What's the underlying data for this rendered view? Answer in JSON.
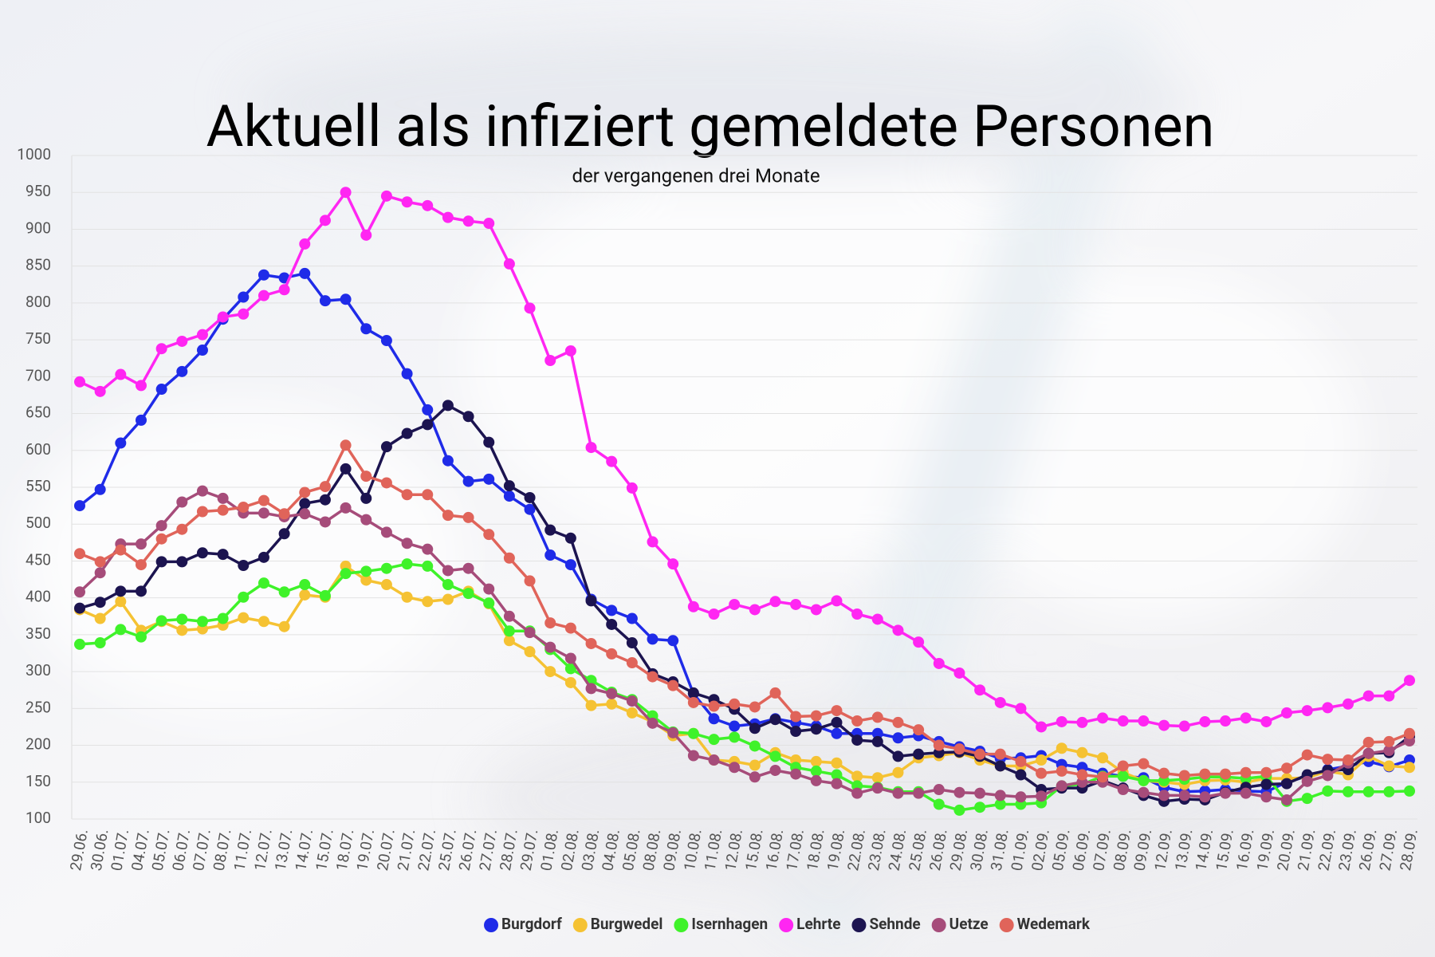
{
  "chart_data": {
    "type": "line",
    "title": "Aktuell als infiziert gemeldete Personen",
    "subtitle": "der vergangenen drei Monate",
    "categories": [
      "29.06.",
      "30.06.",
      "01.07.",
      "04.07.",
      "05.07.",
      "06.07.",
      "07.07.",
      "08.07.",
      "11.07.",
      "12.07.",
      "13.07.",
      "14.07.",
      "15.07.",
      "18.07.",
      "19.07.",
      "20.07.",
      "21.07.",
      "22.07.",
      "25.07.",
      "26.07.",
      "27.07.",
      "28.07.",
      "29.07.",
      "01.08.",
      "02.08.",
      "03.08.",
      "04.08.",
      "05.08.",
      "08.08.",
      "09.08.",
      "10.08.",
      "11.08.",
      "12.08.",
      "15.08.",
      "16.08.",
      "17.08.",
      "18.08.",
      "19.08.",
      "22.08.",
      "23.08.",
      "24.08.",
      "25.08.",
      "26.08.",
      "29.08.",
      "30.08.",
      "31.08.",
      "01.09.",
      "02.09.",
      "05.09.",
      "06.09.",
      "07.09.",
      "08.09.",
      "09.09.",
      "12.09.",
      "13.09.",
      "14.09.",
      "15.09.",
      "16.09.",
      "19.09.",
      "20.09.",
      "21.09.",
      "22.09.",
      "23.09.",
      "26.09.",
      "27.09.",
      "28.09."
    ],
    "series": [
      {
        "name": "Burgdorf",
        "color": "#1f2be8",
        "values": [
          525,
          547,
          610,
          641,
          683,
          707,
          736,
          778,
          808,
          838,
          834,
          840,
          803,
          805,
          765,
          749,
          704,
          655,
          586,
          558,
          561,
          538,
          520,
          458,
          445,
          398,
          383,
          372,
          344,
          342,
          270,
          236,
          226,
          229,
          236,
          231,
          226,
          216,
          216,
          216,
          210,
          213,
          205,
          198,
          192,
          182,
          183,
          186,
          174,
          170,
          162,
          158,
          156,
          143,
          137,
          138,
          140,
          138,
          137,
          150,
          158,
          167,
          172,
          178,
          171,
          180
        ]
      },
      {
        "name": "Burgwedel",
        "color": "#f5c233",
        "values": [
          384,
          372,
          395,
          356,
          368,
          356,
          358,
          363,
          373,
          368,
          361,
          404,
          401,
          443,
          424,
          418,
          401,
          395,
          398,
          409,
          392,
          342,
          327,
          300,
          285,
          254,
          256,
          244,
          232,
          213,
          216,
          180,
          178,
          173,
          190,
          180,
          178,
          176,
          158,
          156,
          163,
          183,
          186,
          190,
          180,
          172,
          172,
          180,
          196,
          190,
          183,
          163,
          152,
          150,
          147,
          152,
          153,
          150,
          155,
          155,
          156,
          165,
          160,
          185,
          172,
          170
        ]
      },
      {
        "name": "Isernhagen",
        "color": "#3ff22a",
        "values": [
          337,
          339,
          357,
          347,
          369,
          371,
          368,
          372,
          401,
          420,
          408,
          418,
          403,
          433,
          436,
          440,
          446,
          443,
          418,
          406,
          393,
          355,
          355,
          330,
          304,
          288,
          272,
          262,
          240,
          218,
          216,
          208,
          211,
          199,
          185,
          170,
          165,
          160,
          145,
          143,
          137,
          137,
          120,
          112,
          116,
          120,
          120,
          122,
          145,
          147,
          158,
          158,
          152,
          152,
          154,
          157,
          157,
          155,
          158,
          124,
          128,
          138,
          137,
          137,
          137,
          138
        ]
      },
      {
        "name": "Lehrte",
        "color": "#ff26f2",
        "values": [
          693,
          680,
          703,
          688,
          738,
          748,
          757,
          781,
          785,
          810,
          818,
          880,
          912,
          950,
          892,
          945,
          937,
          932,
          916,
          911,
          908,
          853,
          793,
          722,
          735,
          604,
          585,
          549,
          476,
          446,
          388,
          378,
          391,
          384,
          395,
          391,
          384,
          396,
          378,
          371,
          356,
          340,
          311,
          298,
          275,
          258,
          250,
          225,
          232,
          231,
          237,
          233,
          233,
          227,
          226,
          232,
          233,
          237,
          232,
          244,
          247,
          251,
          256,
          267,
          267,
          288
        ]
      },
      {
        "name": "Sehnde",
        "color": "#1c1450",
        "values": [
          386,
          394,
          409,
          409,
          449,
          449,
          461,
          459,
          444,
          455,
          487,
          528,
          533,
          575,
          535,
          605,
          623,
          635,
          661,
          646,
          611,
          552,
          536,
          492,
          481,
          396,
          364,
          339,
          297,
          286,
          271,
          262,
          249,
          223,
          235,
          219,
          222,
          231,
          207,
          205,
          185,
          188,
          190,
          191,
          185,
          172,
          160,
          140,
          142,
          142,
          152,
          142,
          132,
          124,
          127,
          126,
          136,
          143,
          147,
          148,
          160,
          166,
          167,
          189,
          190,
          212
        ]
      },
      {
        "name": "Uetze",
        "color": "#a64c7a",
        "values": [
          408,
          434,
          473,
          473,
          498,
          530,
          545,
          535,
          515,
          515,
          510,
          514,
          503,
          522,
          506,
          489,
          474,
          466,
          437,
          440,
          412,
          375,
          353,
          333,
          318,
          277,
          270,
          260,
          230,
          217,
          186,
          180,
          170,
          157,
          166,
          161,
          152,
          148,
          135,
          142,
          135,
          135,
          140,
          136,
          135,
          132,
          130,
          131,
          145,
          150,
          150,
          140,
          136,
          132,
          132,
          130,
          135,
          135,
          130,
          126,
          151,
          159,
          176,
          189,
          193,
          206
        ]
      },
      {
        "name": "Wedemark",
        "color": "#e0645a",
        "values": [
          460,
          449,
          465,
          445,
          480,
          493,
          517,
          519,
          523,
          532,
          514,
          543,
          551,
          607,
          565,
          556,
          540,
          540,
          512,
          509,
          486,
          454,
          423,
          366,
          359,
          338,
          324,
          312,
          293,
          281,
          258,
          253,
          256,
          252,
          271,
          239,
          240,
          247,
          233,
          238,
          231,
          221,
          200,
          195,
          188,
          188,
          178,
          162,
          165,
          160,
          157,
          172,
          175,
          162,
          159,
          161,
          161,
          163,
          163,
          169,
          187,
          181,
          180,
          204,
          205,
          216
        ]
      }
    ],
    "ylim": [
      100,
      1000
    ],
    "yticks": [
      100,
      150,
      200,
      250,
      300,
      350,
      400,
      450,
      500,
      550,
      600,
      650,
      700,
      750,
      800,
      850,
      900,
      950,
      1000
    ],
    "grid": true
  }
}
